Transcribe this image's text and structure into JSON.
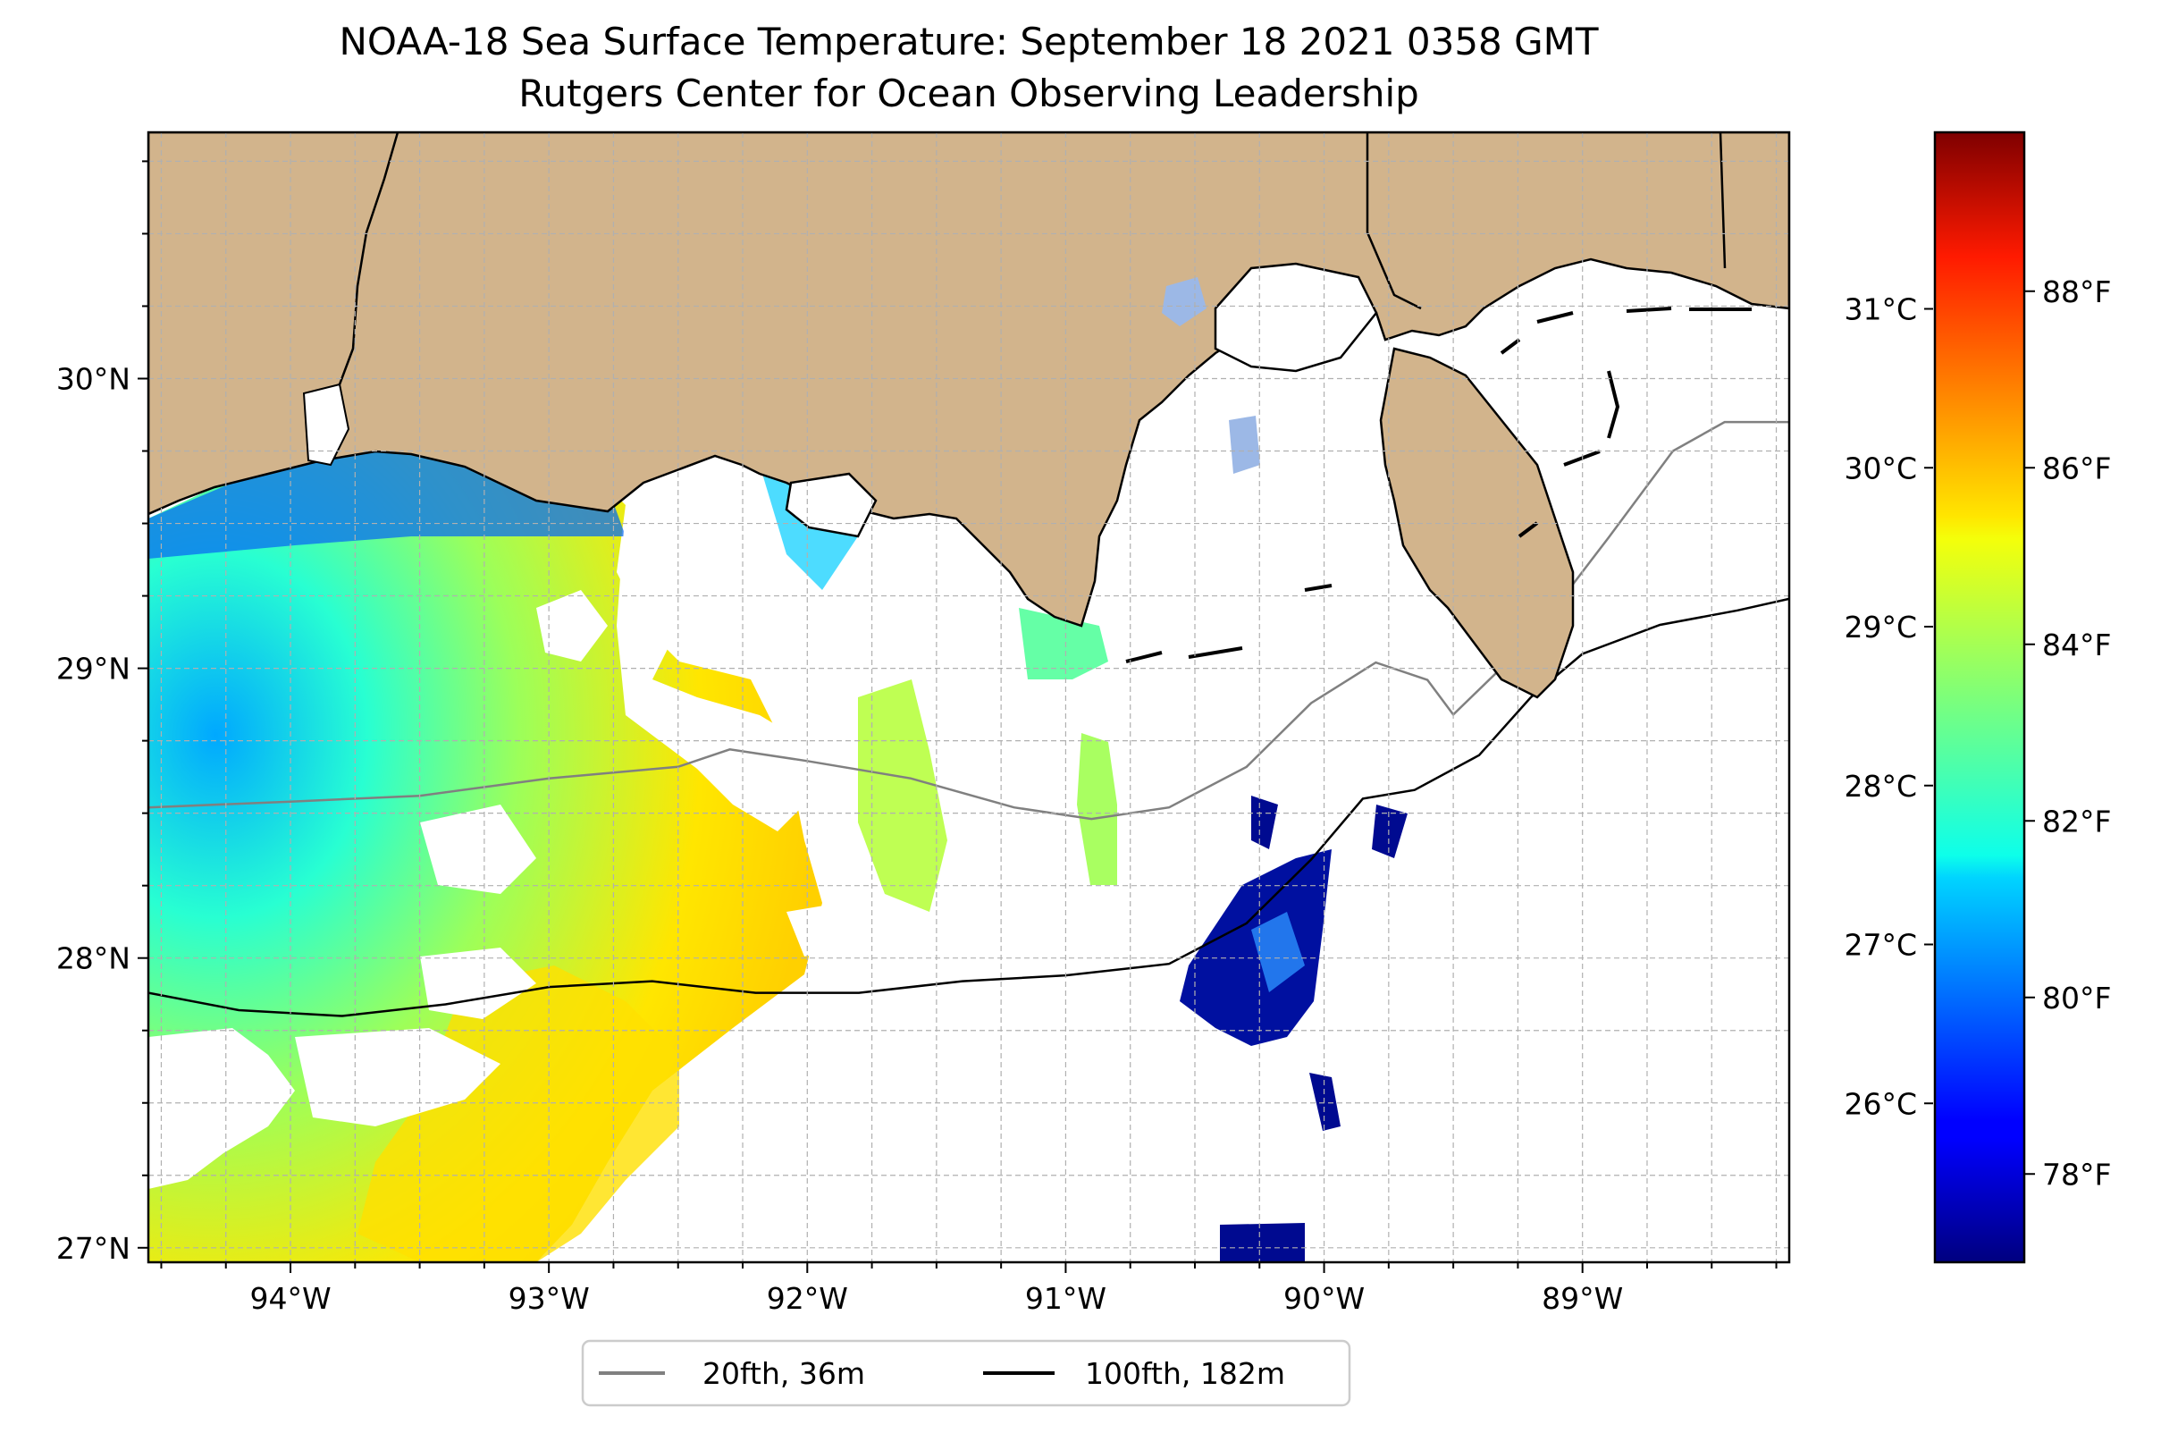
{
  "title": {
    "line1": "NOAA-18 Sea Surface Temperature: September 18 2021 0358 GMT",
    "line2": "Rutgers Center for Ocean Observing Leadership"
  },
  "map": {
    "projection": "PlateCarree",
    "extent_lon": [
      -94.55,
      -88.2
    ],
    "extent_lat": [
      26.95,
      30.85
    ],
    "land_color": "#d2b48c",
    "coast_color": "#000000",
    "no_data_color": "#ffffff",
    "gridlines": "dashed gray",
    "lon_ticks": [
      {
        "value": -94,
        "label": "94°W"
      },
      {
        "value": -93,
        "label": "93°W"
      },
      {
        "value": -92,
        "label": "92°W"
      },
      {
        "value": -91,
        "label": "91°W"
      },
      {
        "value": -90,
        "label": "90°W"
      },
      {
        "value": -89,
        "label": "89°W"
      }
    ],
    "lat_ticks": [
      {
        "value": 30,
        "label": "30°N"
      },
      {
        "value": 29,
        "label": "29°N"
      },
      {
        "value": 28,
        "label": "28°N"
      },
      {
        "value": 27,
        "label": "27°N"
      }
    ]
  },
  "colorbar": {
    "colormap": "jet",
    "range_f": [
      77,
      89.8
    ],
    "celsius_ticks": [
      {
        "value": 26,
        "label": "26°C"
      },
      {
        "value": 27,
        "label": "27°C"
      },
      {
        "value": 28,
        "label": "28°C"
      },
      {
        "value": 29,
        "label": "29°C"
      },
      {
        "value": 30,
        "label": "30°C"
      },
      {
        "value": 31,
        "label": "31°C"
      }
    ],
    "fahrenheit_ticks": [
      {
        "value": 78,
        "label": "78°F"
      },
      {
        "value": 80,
        "label": "80°F"
      },
      {
        "value": 82,
        "label": "82°F"
      },
      {
        "value": 84,
        "label": "84°F"
      },
      {
        "value": 86,
        "label": "86°F"
      },
      {
        "value": 88,
        "label": "88°F"
      }
    ]
  },
  "legend": {
    "placement": "bottom-center",
    "items": [
      {
        "label": "20fth, 36m",
        "color": "#808080"
      },
      {
        "label": "100fth, 182m",
        "color": "#000000"
      }
    ]
  },
  "isobaths": {
    "20fth": {
      "color": "#808080",
      "points": [
        [
          -94.55,
          28.52
        ],
        [
          -94.0,
          28.54
        ],
        [
          -93.5,
          28.56
        ],
        [
          -93.0,
          28.62
        ],
        [
          -92.5,
          28.66
        ],
        [
          -92.3,
          28.72
        ],
        [
          -92.0,
          28.68
        ],
        [
          -91.6,
          28.62
        ],
        [
          -91.2,
          28.52
        ],
        [
          -90.9,
          28.48
        ],
        [
          -90.6,
          28.52
        ],
        [
          -90.3,
          28.66
        ],
        [
          -90.05,
          28.88
        ],
        [
          -89.8,
          29.02
        ],
        [
          -89.6,
          28.96
        ],
        [
          -89.5,
          28.84
        ],
        [
          -89.2,
          29.1
        ],
        [
          -88.9,
          29.45
        ],
        [
          -88.65,
          29.75
        ],
        [
          -88.45,
          29.85
        ],
        [
          -88.2,
          29.85
        ]
      ]
    },
    "100fth": {
      "color": "#000000",
      "points": [
        [
          -94.55,
          27.88
        ],
        [
          -94.2,
          27.82
        ],
        [
          -93.8,
          27.8
        ],
        [
          -93.4,
          27.84
        ],
        [
          -93.0,
          27.9
        ],
        [
          -92.6,
          27.92
        ],
        [
          -92.2,
          27.88
        ],
        [
          -91.8,
          27.88
        ],
        [
          -91.4,
          27.92
        ],
        [
          -91.0,
          27.94
        ],
        [
          -90.6,
          27.98
        ],
        [
          -90.3,
          28.12
        ],
        [
          -90.05,
          28.34
        ],
        [
          -89.85,
          28.55
        ],
        [
          -89.65,
          28.58
        ],
        [
          -89.4,
          28.7
        ],
        [
          -89.2,
          28.9
        ],
        [
          -89.0,
          29.05
        ],
        [
          -88.7,
          29.15
        ],
        [
          -88.4,
          29.2
        ],
        [
          -88.2,
          29.24
        ]
      ]
    }
  }
}
